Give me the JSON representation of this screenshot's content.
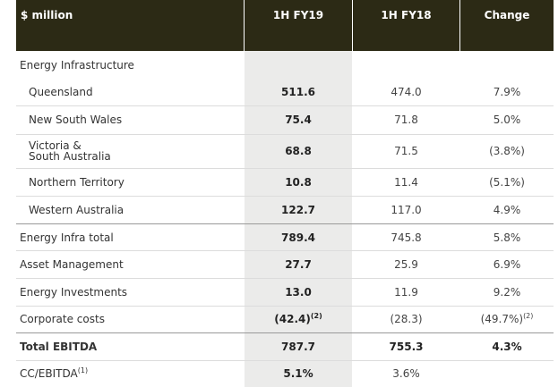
{
  "header": [
    "$ million",
    "1H FY19",
    "1H FY18",
    "Change"
  ],
  "section_title": "Energy Infrastructure",
  "section_rows": [
    {
      "label": [
        "Queensland"
      ],
      "fy19": "511.6",
      "fy18": "474.0",
      "change": "7.9%"
    },
    {
      "label": [
        "New South Wales"
      ],
      "fy19": "75.4",
      "fy18": "71.8",
      "change": "5.0%"
    },
    {
      "label": [
        "Victoria &",
        "South Australia"
      ],
      "fy19": "68.8",
      "fy18": "71.5",
      "change": "(3.8%)"
    },
    {
      "label": [
        "Northern Territory"
      ],
      "fy19": "10.8",
      "fy18": "11.4",
      "change": "(5.1%)"
    },
    {
      "label": [
        "Western Australia"
      ],
      "fy19": "122.7",
      "fy18": "117.0",
      "change": "4.9%"
    }
  ],
  "summary_rows": [
    {
      "label": [
        "Energy Infra total"
      ],
      "fy19": "789.4",
      "fy18": "745.8",
      "change": "5.8%"
    },
    {
      "label": [
        "Asset Management"
      ],
      "fy19": "27.7",
      "fy18": "25.9",
      "change": "6.9%"
    },
    {
      "label": [
        "Energy Investments"
      ],
      "fy19": "13.0",
      "fy18": "11.9",
      "change": "9.2%"
    },
    {
      "label": [
        "Corporate costs"
      ],
      "fy19": {
        "text": "(42.4)",
        "note": "(2)"
      },
      "fy18": "(28.3)",
      "change": {
        "text": "(49.7%)",
        "note": "(2)"
      }
    }
  ],
  "total_row": {
    "label": [
      "Total EBITDA"
    ],
    "fy19": "787.7",
    "fy18": "755.3",
    "change": "4.3%"
  },
  "footer_row": {
    "label": [
      {
        "text": "CC/EBITDA",
        "note": "(1)"
      }
    ],
    "fy19": "5.1%",
    "fy18": "3.6%"
  }
}
